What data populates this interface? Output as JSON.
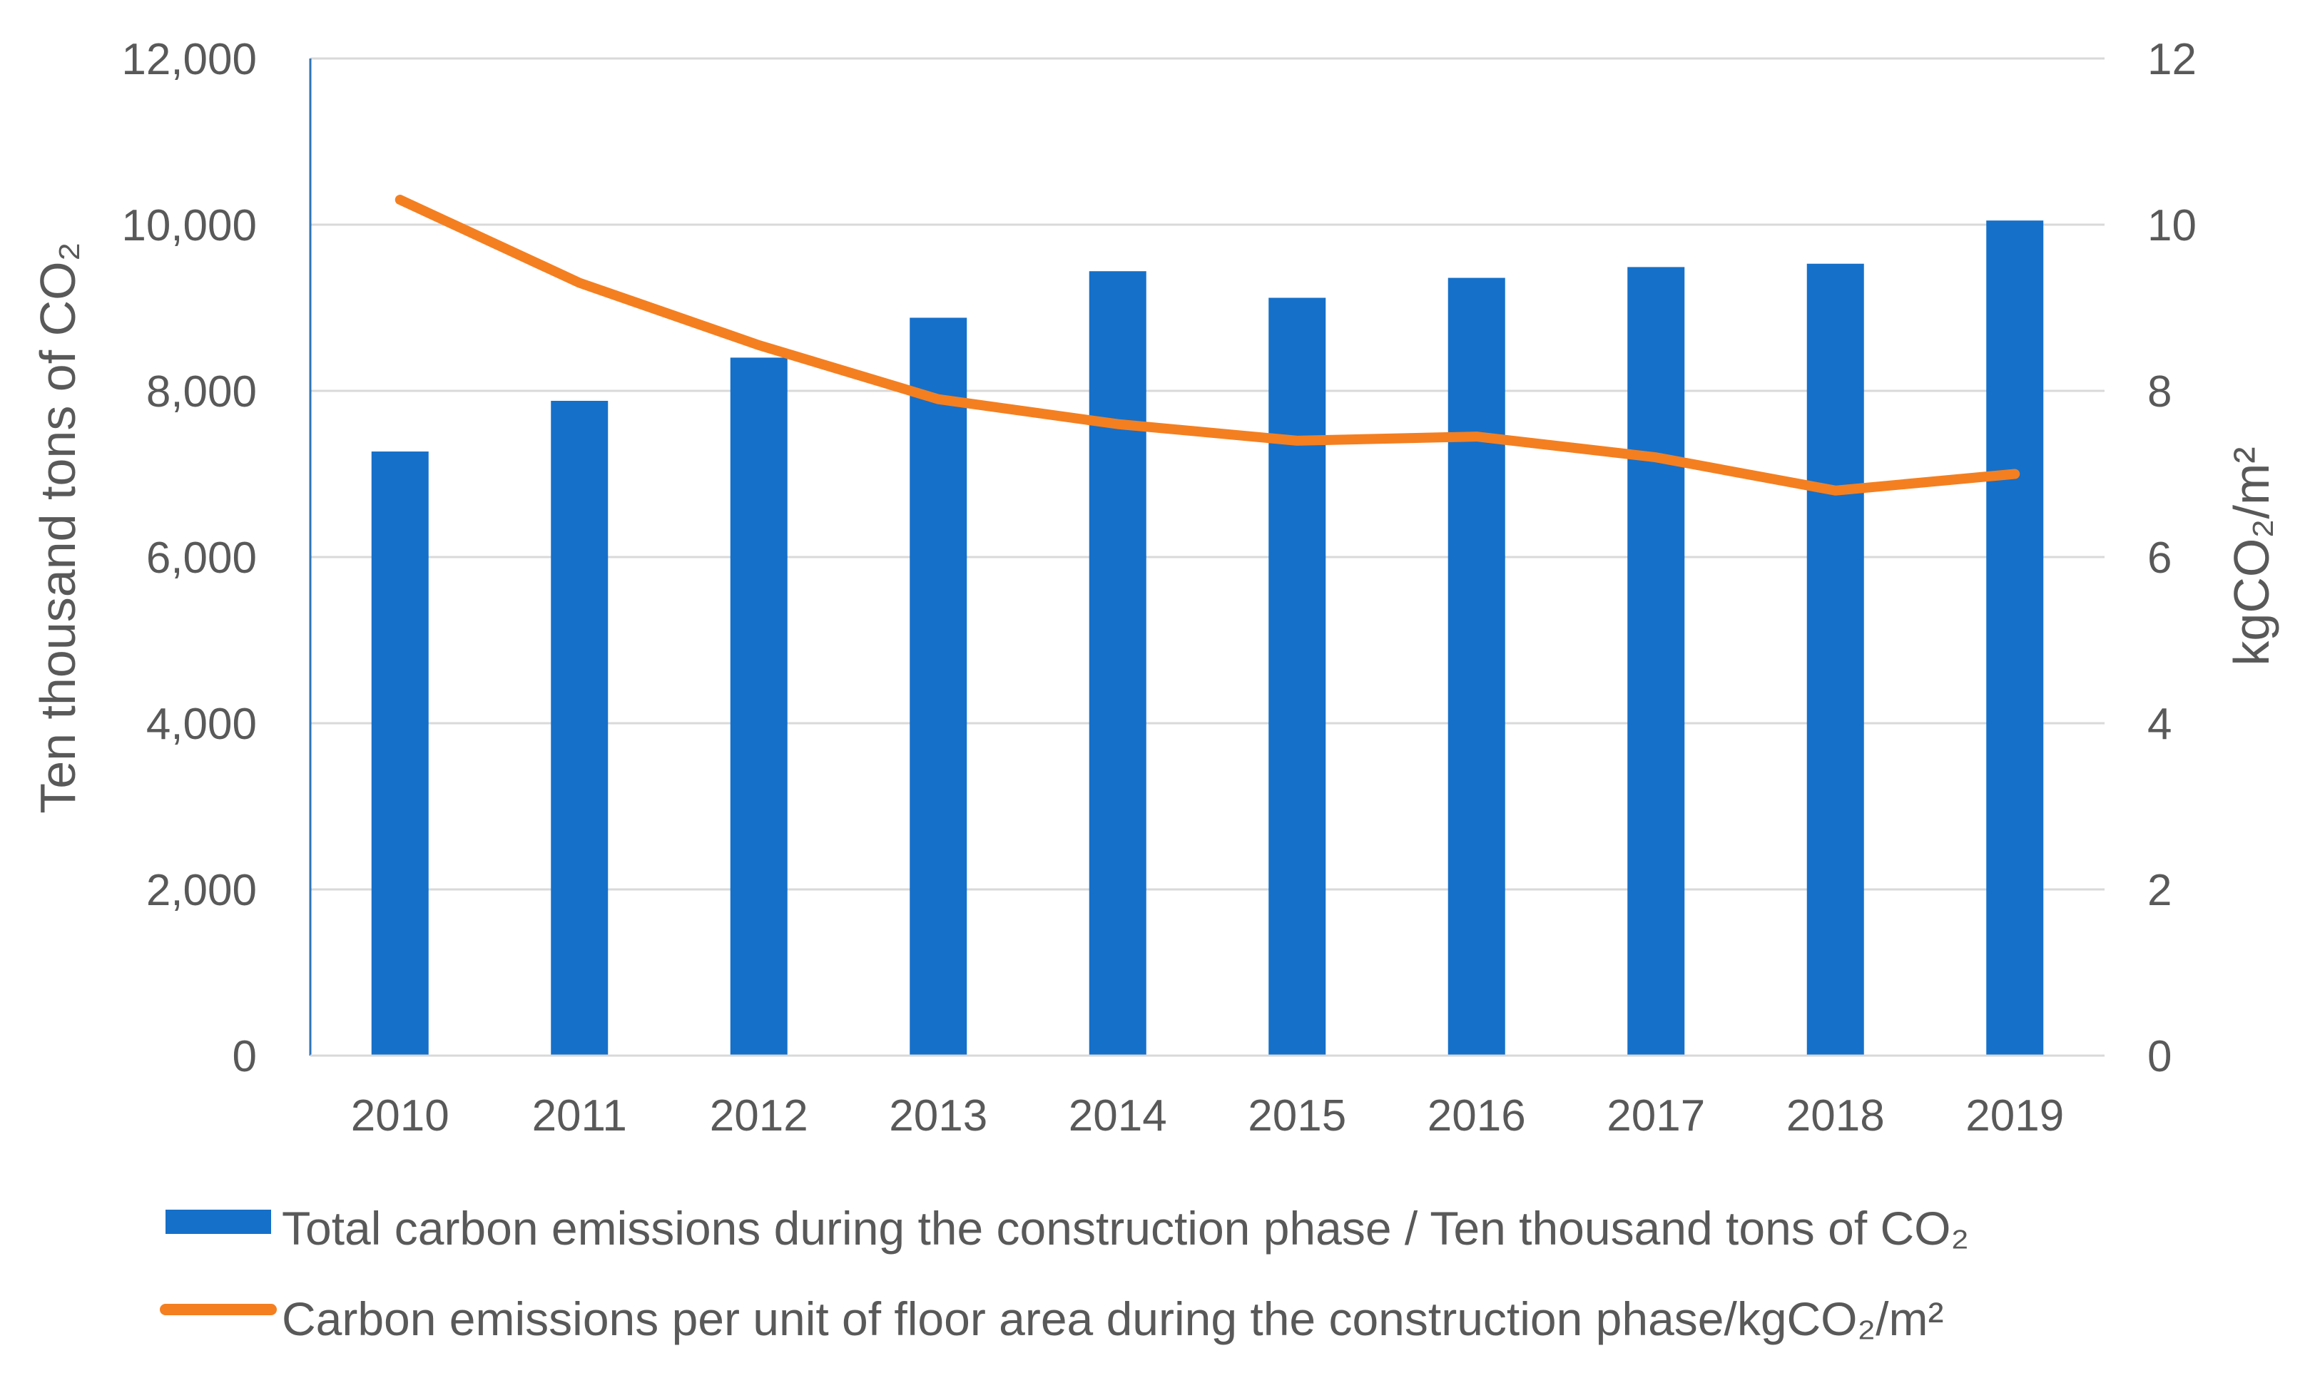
{
  "chart_data": {
    "type": "bar",
    "title": "",
    "categories": [
      "2010",
      "2011",
      "2012",
      "2013",
      "2014",
      "2015",
      "2016",
      "2017",
      "2018",
      "2019"
    ],
    "series": [
      {
        "name": "Total carbon emissions during the construction phase / Ten thousand tons of CO₂",
        "type": "bar",
        "axis": "left",
        "color": "#1570C9",
        "values": [
          7270,
          7880,
          8400,
          8880,
          9440,
          9120,
          9360,
          9490,
          9530,
          10050
        ]
      },
      {
        "name": "Carbon emissions per unit of floor area during the construction phase/kgCO₂/m²",
        "type": "line",
        "axis": "right",
        "color": "#F47F20",
        "values": [
          10.3,
          9.3,
          8.55,
          7.9,
          7.6,
          7.4,
          7.45,
          7.2,
          6.8,
          7.0
        ]
      }
    ],
    "y_left": {
      "label": "Ten thousand tons of CO₂",
      "ylim": [
        0,
        12000
      ],
      "ticks": [
        "0",
        "2,000",
        "4,000",
        "6,000",
        "8,000",
        "10,000",
        "12,000"
      ],
      "tick_values": [
        0,
        2000,
        4000,
        6000,
        8000,
        10000,
        12000
      ]
    },
    "y_right": {
      "label": "kgCO₂/m²",
      "ylim": [
        0,
        12
      ],
      "ticks": [
        "0",
        "2",
        "4",
        "6",
        "8",
        "10",
        "12"
      ],
      "tick_values": [
        0,
        2,
        4,
        6,
        8,
        10,
        12
      ]
    },
    "grid": true,
    "legend": "bottom"
  }
}
